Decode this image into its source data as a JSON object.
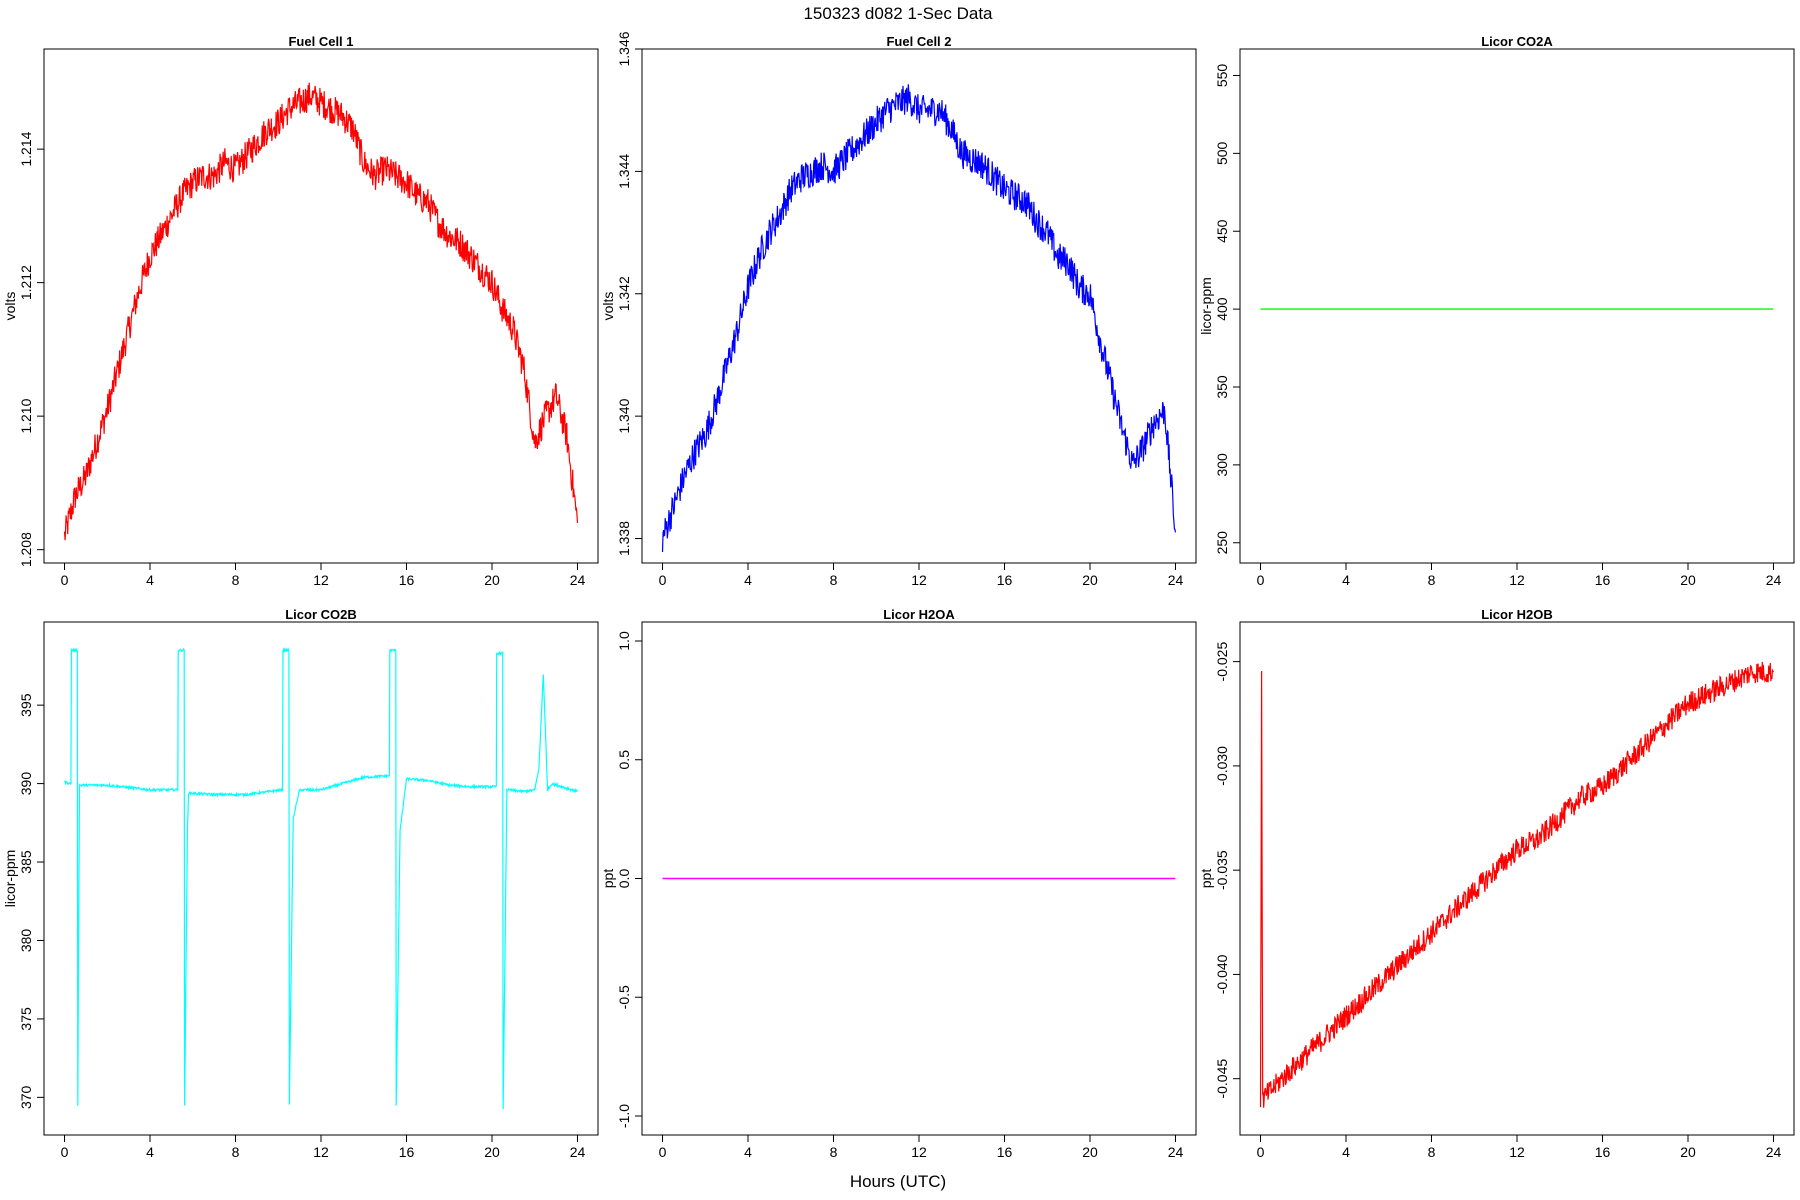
{
  "figure": {
    "title": "150323   d082   1-Sec Data",
    "xlabel": "Hours (UTC)"
  },
  "chart_data": [
    {
      "type": "line",
      "title": "Fuel Cell 1",
      "ylabel": "volts",
      "color": "#ff0000",
      "xlim": [
        0,
        24
      ],
      "ylim": [
        1.2078,
        1.2155
      ],
      "xticks": [
        0,
        4,
        8,
        12,
        16,
        20,
        24
      ],
      "xtick_labels": [
        "0",
        "4",
        "8",
        "12",
        "16",
        "20",
        "24"
      ],
      "yticks": [
        1.208,
        1.21,
        1.212,
        1.214
      ],
      "ytick_labels": [
        "1.208",
        "1.210",
        "1.212",
        "1.214"
      ],
      "noise": 0.00045,
      "series": [
        {
          "x": [
            0,
            0.5,
            1,
            1.5,
            2,
            2.5,
            3,
            3.5,
            4,
            4.5,
            5,
            5.5,
            6,
            6.5,
            7,
            7.5,
            8,
            8.5,
            9,
            9.5,
            10,
            10.5,
            11,
            11.5,
            12,
            12.5,
            13,
            13.5,
            14,
            14.5,
            15,
            15.5,
            16,
            16.5,
            17,
            17.5,
            18,
            18.5,
            19,
            19.5,
            20,
            20.5,
            21,
            21.5,
            22,
            22.5,
            23,
            23.5,
            24
          ],
          "y": [
            1.2082,
            1.2088,
            1.2091,
            1.2096,
            1.2101,
            1.2107,
            1.2113,
            1.2119,
            1.2124,
            1.2127,
            1.213,
            1.2133,
            1.2135,
            1.2136,
            1.2136,
            1.2138,
            1.2137,
            1.2139,
            1.2141,
            1.2143,
            1.2144,
            1.2146,
            1.2147,
            1.2148,
            1.2147,
            1.2146,
            1.2145,
            1.2143,
            1.2138,
            1.2136,
            1.2137,
            1.2136,
            1.2135,
            1.2133,
            1.2132,
            1.2129,
            1.2127,
            1.2126,
            1.2124,
            1.2122,
            1.212,
            1.2116,
            1.2113,
            1.2107,
            1.2096,
            1.21,
            1.2103,
            1.2097,
            1.2084
          ]
        }
      ]
    },
    {
      "type": "line",
      "title": "Fuel Cell 2",
      "ylabel": "volts",
      "color": "#0000ff",
      "xlim": [
        0,
        24
      ],
      "ylim": [
        1.3376,
        1.346
      ],
      "xticks": [
        0,
        4,
        8,
        12,
        16,
        20,
        24
      ],
      "xtick_labels": [
        "0",
        "4",
        "8",
        "12",
        "16",
        "20",
        "24"
      ],
      "yticks": [
        1.338,
        1.34,
        1.342,
        1.344,
        1.346
      ],
      "ytick_labels": [
        "1.338",
        "1.340",
        "1.342",
        "1.344",
        "1.346"
      ],
      "noise": 0.0005,
      "series": [
        {
          "x": [
            0,
            0.5,
            1,
            1.5,
            2,
            2.5,
            3,
            3.5,
            4,
            4.5,
            5,
            5.5,
            6,
            6.5,
            7,
            7.5,
            8,
            8.5,
            9,
            9.5,
            10,
            10.5,
            11,
            11.5,
            12,
            12.5,
            13,
            13.5,
            14,
            14.5,
            15,
            15.5,
            16,
            16.5,
            17,
            17.5,
            18,
            18.5,
            19,
            19.5,
            20,
            20.5,
            21,
            21.5,
            22,
            22.5,
            23,
            23.5,
            24
          ],
          "y": [
            1.338,
            1.3385,
            1.339,
            1.3394,
            1.3397,
            1.3402,
            1.3408,
            1.3414,
            1.3421,
            1.3426,
            1.343,
            1.3433,
            1.3437,
            1.3439,
            1.344,
            1.3441,
            1.344,
            1.3442,
            1.3444,
            1.3446,
            1.3448,
            1.345,
            1.3451,
            1.3452,
            1.345,
            1.345,
            1.345,
            1.3447,
            1.3443,
            1.3442,
            1.3441,
            1.3439,
            1.3437,
            1.3436,
            1.3435,
            1.3432,
            1.343,
            1.3426,
            1.3425,
            1.3421,
            1.342,
            1.3412,
            1.3405,
            1.3398,
            1.3392,
            1.3395,
            1.3399,
            1.3401,
            1.3381
          ]
        }
      ]
    },
    {
      "type": "line",
      "title": "Licor CO2A",
      "ylabel": "licor-ppm",
      "color": "#00ff00",
      "xlim": [
        0,
        24
      ],
      "ylim": [
        237,
        567
      ],
      "xticks": [
        0,
        4,
        8,
        12,
        16,
        20,
        24
      ],
      "xtick_labels": [
        "0",
        "4",
        "8",
        "12",
        "16",
        "20",
        "24"
      ],
      "yticks": [
        250,
        300,
        350,
        400,
        450,
        500,
        550
      ],
      "ytick_labels": [
        "250",
        "300",
        "350",
        "400",
        "450",
        "500",
        "550"
      ],
      "noise": 0,
      "series": [
        {
          "x": [
            0,
            24
          ],
          "y": [
            400,
            400
          ]
        }
      ]
    },
    {
      "type": "line",
      "title": "Licor CO2B",
      "ylabel": "licor-ppm",
      "color": "#00ffff",
      "xlim": [
        0,
        24
      ],
      "ylim": [
        367.6,
        400.3
      ],
      "xticks": [
        0,
        4,
        8,
        12,
        16,
        20,
        24
      ],
      "xtick_labels": [
        "0",
        "4",
        "8",
        "12",
        "16",
        "20",
        "24"
      ],
      "yticks": [
        370,
        375,
        380,
        385,
        390,
        395
      ],
      "ytick_labels": [
        "370",
        "375",
        "380",
        "385",
        "390",
        "395"
      ],
      "noise": 0.15,
      "series": [
        {
          "x": [
            0,
            0.3,
            0.32,
            0.35,
            0.6,
            0.62,
            0.7,
            2,
            4,
            5.3,
            5.32,
            5.35,
            5.6,
            5.62,
            5.75,
            5.8,
            7,
            8.5,
            10.2,
            10.22,
            10.25,
            10.5,
            10.52,
            10.7,
            11,
            12,
            13,
            14,
            15.2,
            15.22,
            15.25,
            15.5,
            15.52,
            15.7,
            16,
            17,
            18,
            19,
            20.2,
            20.22,
            20.25,
            20.5,
            20.52,
            20.7,
            21.5,
            22,
            22.2,
            22.4,
            22.6,
            22.8,
            23.5,
            24
          ],
          "y": [
            390.1,
            390.0,
            398.5,
            398.5,
            398.5,
            369.5,
            389.9,
            389.9,
            389.6,
            389.6,
            398.5,
            398.5,
            398.5,
            369.5,
            387.0,
            389.4,
            389.3,
            389.3,
            389.6,
            398.5,
            398.5,
            398.5,
            369.5,
            387.8,
            389.6,
            389.6,
            390.0,
            390.4,
            390.5,
            398.5,
            398.5,
            398.5,
            369.5,
            387.0,
            390.3,
            390.2,
            389.9,
            389.8,
            389.8,
            398.3,
            398.3,
            398.3,
            369.3,
            389.6,
            389.5,
            389.6,
            391.0,
            397.0,
            389.6,
            390.0,
            389.7,
            389.5
          ]
        }
      ]
    },
    {
      "type": "line",
      "title": "Licor H2OA",
      "ylabel": "ppt",
      "color": "#ff00ff",
      "xlim": [
        0,
        24
      ],
      "ylim": [
        -1.08,
        1.08
      ],
      "xticks": [
        0,
        4,
        8,
        12,
        16,
        20,
        24
      ],
      "xtick_labels": [
        "0",
        "4",
        "8",
        "12",
        "16",
        "20",
        "24"
      ],
      "yticks": [
        -1.0,
        -0.5,
        0.0,
        0.5,
        1.0
      ],
      "ytick_labels": [
        "-1.0",
        "-0.5",
        "0.0",
        "0.5",
        "1.0"
      ],
      "noise": 0,
      "series": [
        {
          "x": [
            0,
            24
          ],
          "y": [
            0,
            0
          ]
        }
      ]
    },
    {
      "type": "line",
      "title": "Licor H2OB",
      "ylabel": "ppt",
      "color": "#ff0000",
      "xlim": [
        0,
        24
      ],
      "ylim": [
        -0.0477,
        -0.0231
      ],
      "xticks": [
        0,
        4,
        8,
        12,
        16,
        20,
        24
      ],
      "xtick_labels": [
        "0",
        "4",
        "8",
        "12",
        "16",
        "20",
        "24"
      ],
      "yticks": [
        -0.045,
        -0.04,
        -0.035,
        -0.03,
        -0.025
      ],
      "ytick_labels": [
        "-0.045",
        "-0.040",
        "-0.035",
        "-0.030",
        "-0.025"
      ],
      "noise": 0.0011,
      "series": [
        {
          "x": [
            0,
            0.05,
            0.1,
            1,
            2,
            3,
            4,
            5,
            6,
            7,
            8,
            9,
            10,
            11,
            12,
            13,
            14,
            15,
            16,
            17,
            18,
            19,
            20,
            21,
            22,
            23,
            24
          ],
          "y": [
            -0.046,
            -0.025,
            -0.046,
            -0.045,
            -0.044,
            -0.043,
            -0.042,
            -0.041,
            -0.04,
            -0.039,
            -0.038,
            -0.037,
            -0.036,
            -0.035,
            -0.034,
            -0.0335,
            -0.0325,
            -0.0315,
            -0.031,
            -0.03,
            -0.029,
            -0.028,
            -0.027,
            -0.0265,
            -0.026,
            -0.0255,
            -0.0255
          ]
        }
      ]
    }
  ]
}
